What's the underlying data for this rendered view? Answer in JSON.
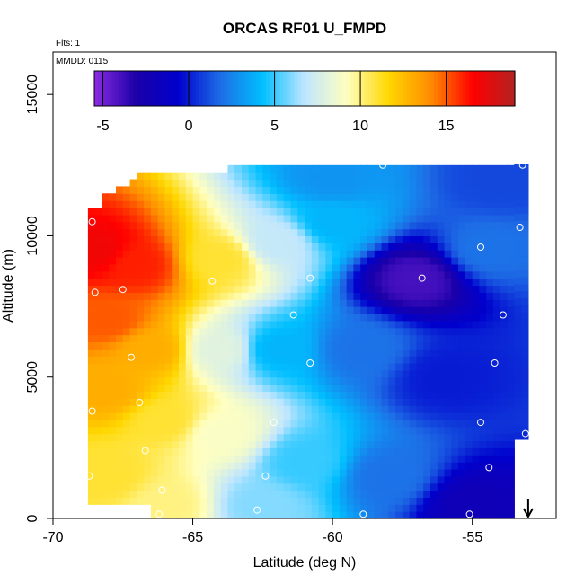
{
  "chart_data": {
    "type": "heatmap",
    "title": "ORCAS RF01 U_FMPD",
    "xlabel": "Latitude (deg N)",
    "ylabel": "Altitude (m)",
    "xlim": [
      -70,
      -52
    ],
    "ylim": [
      0,
      16500
    ],
    "x_ticks": [
      -70,
      -65,
      -60,
      -55
    ],
    "y_ticks": [
      0,
      5000,
      10000,
      15000
    ],
    "top_left_text": [
      "Flts: 1",
      "MMDD: 0115"
    ],
    "colorbar": {
      "range": [
        -5.5,
        19
      ],
      "ticks": [
        -5,
        0,
        5,
        10,
        15
      ],
      "placement": "top inside plot",
      "colors": [
        "#8b2be2",
        "#1a00a8",
        "#0000cd",
        "#1e6ee6",
        "#00bfff",
        "#bfe6ff",
        "#ffffc0",
        "#ffd700",
        "#ff8c00",
        "#ff0000",
        "#b22222"
      ]
    },
    "grid": false,
    "field": {
      "description_points": [
        {
          "lat": -68.5,
          "alt": 9500,
          "u": 17
        },
        {
          "lat": -67.0,
          "alt": 9000,
          "u": 16
        },
        {
          "lat": -64.0,
          "alt": 9200,
          "u": 11
        },
        {
          "lat": -62.0,
          "alt": 9800,
          "u": 7
        },
        {
          "lat": -60.0,
          "alt": 10500,
          "u": 4
        },
        {
          "lat": -57.0,
          "alt": 8500,
          "u": -4
        },
        {
          "lat": -54.5,
          "alt": 9500,
          "u": 2
        },
        {
          "lat": -68.0,
          "alt": 7000,
          "u": 15
        },
        {
          "lat": -66.5,
          "alt": 6000,
          "u": 13
        },
        {
          "lat": -64.0,
          "alt": 6000,
          "u": 8
        },
        {
          "lat": -62.0,
          "alt": 6000,
          "u": 4
        },
        {
          "lat": -59.0,
          "alt": 6000,
          "u": 2
        },
        {
          "lat": -56.0,
          "alt": 5000,
          "u": 0
        },
        {
          "lat": -68.0,
          "alt": 4500,
          "u": 13
        },
        {
          "lat": -66.0,
          "alt": 3500,
          "u": 11
        },
        {
          "lat": -64.0,
          "alt": 3000,
          "u": 9
        },
        {
          "lat": -61.0,
          "alt": 2000,
          "u": 5
        },
        {
          "lat": -58.0,
          "alt": 1500,
          "u": 2
        },
        {
          "lat": -55.0,
          "alt": 500,
          "u": -2
        },
        {
          "lat": -68.0,
          "alt": 1500,
          "u": 11
        },
        {
          "lat": -66.0,
          "alt": 500,
          "u": 10
        },
        {
          "lat": -62.5,
          "alt": 500,
          "u": 6
        },
        {
          "lat": -60.0,
          "alt": 12000,
          "u": 3
        },
        {
          "lat": -54.0,
          "alt": 12000,
          "u": 1
        }
      ]
    },
    "flight_points": [
      {
        "lat": -68.6,
        "alt": 10500
      },
      {
        "lat": -68.5,
        "alt": 8000
      },
      {
        "lat": -67.5,
        "alt": 8100
      },
      {
        "lat": -64.3,
        "alt": 8400
      },
      {
        "lat": -60.8,
        "alt": 8500
      },
      {
        "lat": -61.4,
        "alt": 7200
      },
      {
        "lat": -58.2,
        "alt": 12500
      },
      {
        "lat": -53.2,
        "alt": 12500
      },
      {
        "lat": -53.3,
        "alt": 10300
      },
      {
        "lat": -54.7,
        "alt": 9600
      },
      {
        "lat": -56.8,
        "alt": 8500
      },
      {
        "lat": -53.9,
        "alt": 7200
      },
      {
        "lat": -68.9,
        "alt": 5600
      },
      {
        "lat": -67.2,
        "alt": 5700
      },
      {
        "lat": -60.8,
        "alt": 5500
      },
      {
        "lat": -54.2,
        "alt": 5500
      },
      {
        "lat": -66.9,
        "alt": 4100
      },
      {
        "lat": -62.1,
        "alt": 3400
      },
      {
        "lat": -54.7,
        "alt": 3400
      },
      {
        "lat": -68.6,
        "alt": 3800
      },
      {
        "lat": -66.7,
        "alt": 2400
      },
      {
        "lat": -53.1,
        "alt": 3000
      },
      {
        "lat": -54.4,
        "alt": 1800
      },
      {
        "lat": -68.7,
        "alt": 1500
      },
      {
        "lat": -62.4,
        "alt": 1500
      },
      {
        "lat": -66.1,
        "alt": 1000
      },
      {
        "lat": -62.7,
        "alt": 300
      },
      {
        "lat": -58.9,
        "alt": 150
      },
      {
        "lat": -55.1,
        "alt": 150
      },
      {
        "lat": -66.2,
        "alt": 150
      }
    ],
    "arrow_marker": {
      "lat": -53.0,
      "direction": "down"
    }
  }
}
